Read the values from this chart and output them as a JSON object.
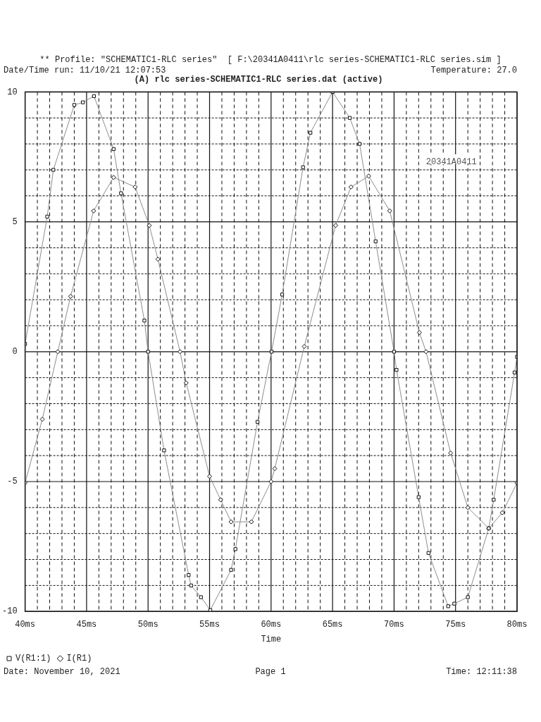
{
  "chart_data": {
    "type": "line",
    "title": "(A) rlc series-SCHEMATIC1-RLC series.dat (active)",
    "xlabel": "Time",
    "annotations": [
      "** Profile: \"SCHEMATIC1-RLC series\"  [ F:\\20341A0411\\rlc series-SCHEMATIC1-RLC series.sim ]",
      "Date/Time run: 11/10/21 12:07:53",
      "Temperature: 27.0",
      "Date: November 10, 2021",
      "Page 1",
      "Time: 12:11:38",
      "20341A0411"
    ],
    "xlim": [
      40,
      80
    ],
    "ylim": [
      -10,
      10
    ],
    "xticks": [
      {
        "value": 40,
        "label": "40ms"
      },
      {
        "value": 41,
        "label": null
      },
      {
        "value": 42,
        "label": null
      },
      {
        "value": 43,
        "label": null
      },
      {
        "value": 44,
        "label": null
      },
      {
        "value": 45,
        "label": "45ms"
      },
      {
        "value": 46,
        "label": null
      },
      {
        "value": 47,
        "label": null
      },
      {
        "value": 48,
        "label": null
      },
      {
        "value": 49,
        "label": null
      },
      {
        "value": 50,
        "label": "50ms"
      },
      {
        "value": 51,
        "label": null
      },
      {
        "value": 52,
        "label": null
      },
      {
        "value": 53,
        "label": null
      },
      {
        "value": 54,
        "label": null
      },
      {
        "value": 55,
        "label": "55ms"
      },
      {
        "value": 56,
        "label": null
      },
      {
        "value": 57,
        "label": null
      },
      {
        "value": 58,
        "label": null
      },
      {
        "value": 59,
        "label": null
      },
      {
        "value": 60,
        "label": "60ms"
      },
      {
        "value": 61,
        "label": null
      },
      {
        "value": 62,
        "label": null
      },
      {
        "value": 63,
        "label": null
      },
      {
        "value": 64,
        "label": null
      },
      {
        "value": 65,
        "label": "65ms"
      },
      {
        "value": 66,
        "label": null
      },
      {
        "value": 67,
        "label": null
      },
      {
        "value": 68,
        "label": null
      },
      {
        "value": 69,
        "label": null
      },
      {
        "value": 70,
        "label": "70ms"
      },
      {
        "value": 71,
        "label": null
      },
      {
        "value": 72,
        "label": null
      },
      {
        "value": 73,
        "label": null
      },
      {
        "value": 74,
        "label": null
      },
      {
        "value": 75,
        "label": "75ms"
      },
      {
        "value": 76,
        "label": null
      },
      {
        "value": 77,
        "label": null
      },
      {
        "value": 78,
        "label": null
      },
      {
        "value": 79,
        "label": null
      },
      {
        "value": 80,
        "label": "80ms"
      }
    ],
    "yticks": [
      -10,
      {
        "value": -9,
        "label": null
      },
      {
        "value": -8,
        "label": null
      },
      {
        "value": -7,
        "label": null
      },
      {
        "value": -6,
        "label": null
      },
      -5,
      {
        "value": -4,
        "label": null
      },
      {
        "value": -3,
        "label": null
      },
      {
        "value": -2,
        "label": null
      },
      {
        "value": -1,
        "label": null
      },
      0,
      {
        "value": 1,
        "label": null
      },
      {
        "value": 2,
        "label": null
      },
      {
        "value": 3,
        "label": null
      },
      {
        "value": 4,
        "label": null
      },
      5,
      {
        "value": 6,
        "label": null
      },
      {
        "value": 7,
        "label": null
      },
      {
        "value": 8,
        "label": null
      },
      {
        "value": 9,
        "label": null
      },
      10
    ],
    "grid": true,
    "legend": "bottom left",
    "line_style": "solid",
    "series": [
      {
        "name": "V(R1:1)",
        "color": "#8c8c8c",
        "marker": "square",
        "x": [
          40,
          41.8,
          42.3,
          44.0,
          44.7,
          45.6,
          47.2,
          47.8,
          49.7,
          50.0,
          51.3,
          53.3,
          53.5,
          54.3,
          55.06,
          56.75,
          57.1,
          58.9,
          60.04,
          60.9,
          62.6,
          63.2,
          65.0,
          66.4,
          67.2,
          68.5,
          70.0,
          70.2,
          72.0,
          72.8,
          74.4,
          74.9,
          76.0,
          77.7,
          78.1,
          79.8,
          80
        ],
        "values": [
          0.3,
          5.2,
          7.0,
          9.5,
          9.6,
          9.84,
          7.8,
          6.1,
          1.2,
          0,
          -3.8,
          -8.6,
          -9.0,
          -9.45,
          -9.95,
          -8.4,
          -7.6,
          -2.7,
          0,
          2.2,
          7.1,
          8.43,
          10,
          9.0,
          8.0,
          4.25,
          0,
          -0.7,
          -5.6,
          -7.75,
          -9.8,
          -9.7,
          -9.45,
          -6.8,
          -5.7,
          -0.8,
          -0.2
        ]
      },
      {
        "name": "I(R1)",
        "color": "#8c8c8c",
        "marker": "diamond",
        "x": [
          40,
          41.4,
          42.66,
          43.7,
          45.57,
          47.2,
          48.95,
          50.1,
          50.8,
          52.6,
          53.1,
          55.0,
          55.9,
          56.75,
          58.4,
          60.0,
          60.3,
          62.7,
          65.25,
          66.5,
          67.94,
          69.65,
          72.06,
          72.6,
          74.6,
          76.0,
          77.7,
          78.8,
          80
        ],
        "values": [
          -5.05,
          -2.6,
          0,
          2.13,
          5.42,
          6.71,
          6.34,
          4.86,
          3.56,
          0,
          -1.2,
          -4.8,
          -5.7,
          -6.55,
          -6.55,
          -5.0,
          -4.5,
          0.2,
          4.86,
          6.34,
          6.76,
          5.42,
          0.74,
          0,
          -3.9,
          -6.0,
          -6.8,
          -6.2,
          -5.05
        ]
      }
    ]
  }
}
